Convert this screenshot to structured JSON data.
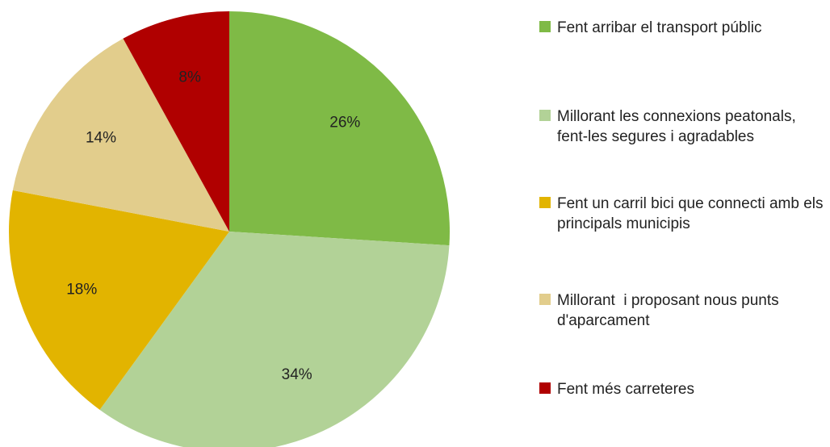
{
  "chart_data": {
    "type": "pie",
    "categories": [
      "Fent arribar el transport públic",
      "Millorant les connexions peatonals, fent-les segures i agradables",
      "Fent un carril bici que connecti amb els principals municipis",
      "Millorant  i proposant nous punts d'aparcament",
      "Fent més carreteres"
    ],
    "values": [
      26,
      34,
      18,
      14,
      8
    ],
    "value_labels": [
      "26%",
      "34%",
      "18%",
      "14%",
      "8%"
    ],
    "colors": [
      "#7fba46",
      "#b2d297",
      "#e2b400",
      "#e2cd8c",
      "#b00000"
    ],
    "legend": "right"
  }
}
